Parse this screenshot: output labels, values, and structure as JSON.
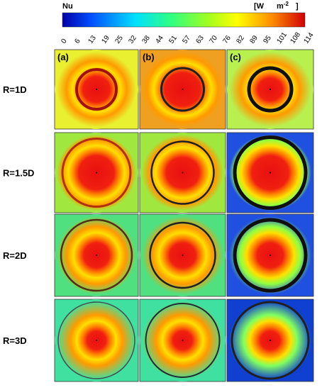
{
  "colorbar": {
    "label": "Nu",
    "unit_start": "[W",
    "unit_m": "m",
    "unit_exp": "-2",
    "unit_end": "]",
    "ticks": [
      0,
      6,
      13,
      19,
      25,
      32,
      38,
      44,
      51,
      57,
      63,
      70,
      76,
      82,
      89,
      95,
      101,
      108,
      114
    ]
  },
  "columns": [
    "(a)",
    "(b)",
    "(c)"
  ],
  "rows": [
    "R=1D",
    "R=1.5D",
    "R=2D",
    "R=3D"
  ]
}
